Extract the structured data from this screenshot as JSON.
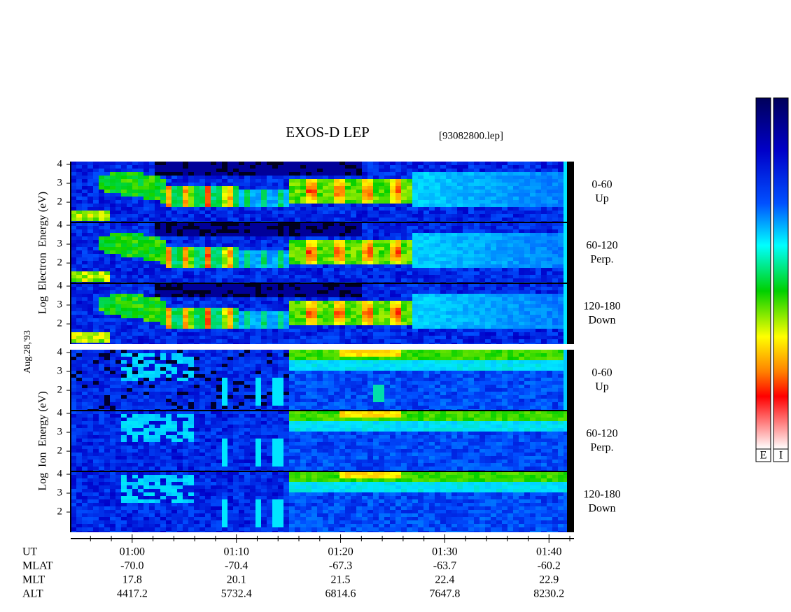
{
  "chart_data": {
    "type": "spectrogram",
    "title": "EXOS-D LEP",
    "file": "[93082800.lep]",
    "date": "Aug.28,'93",
    "xlim": [
      54.1,
      102.4
    ],
    "xticks": [
      {
        "value": 60,
        "label": "01:00"
      },
      {
        "value": 70,
        "label": "01:10"
      },
      {
        "value": 80,
        "label": "01:20"
      },
      {
        "value": 90,
        "label": "01:30"
      },
      {
        "value": 100,
        "label": "01:40"
      }
    ],
    "xminorticks": [
      56,
      58,
      62,
      64,
      66,
      68,
      72,
      74,
      76,
      78,
      82,
      84,
      86,
      88,
      92,
      94,
      96,
      98,
      102
    ],
    "ylim": [
      0.93,
      4.15
    ],
    "yticks": [
      2,
      3,
      4
    ],
    "groups": [
      {
        "ylabel": "Log  Electron  Energy (eV)",
        "panels": [
          {
            "angle": "0-60",
            "dir": "Up"
          },
          {
            "angle": "60-120",
            "dir": "Perp."
          },
          {
            "angle": "120-180",
            "dir": "Down"
          }
        ]
      },
      {
        "ylabel": "Log  Ion  Energy (eV)",
        "panels": [
          {
            "angle": "0-60",
            "dir": "Up"
          },
          {
            "angle": "60-120",
            "dir": "Perp."
          },
          {
            "angle": "120-180",
            "dir": "Down"
          }
        ]
      }
    ],
    "x_row_label": "UT",
    "table": {
      "rows": [
        {
          "label": "MLAT",
          "cells": [
            "-70.0",
            "-70.4",
            "-67.3",
            "-63.7",
            "-60.2"
          ]
        },
        {
          "label": "MLT",
          "cells": [
            "17.8",
            "20.1",
            "21.5",
            "22.4",
            "22.9"
          ]
        },
        {
          "label": "ALT",
          "cells": [
            "4417.2",
            "5732.4",
            "6814.6",
            "7647.8",
            "8230.2"
          ]
        }
      ]
    },
    "colorbar_labels": [
      "E",
      "I"
    ]
  }
}
